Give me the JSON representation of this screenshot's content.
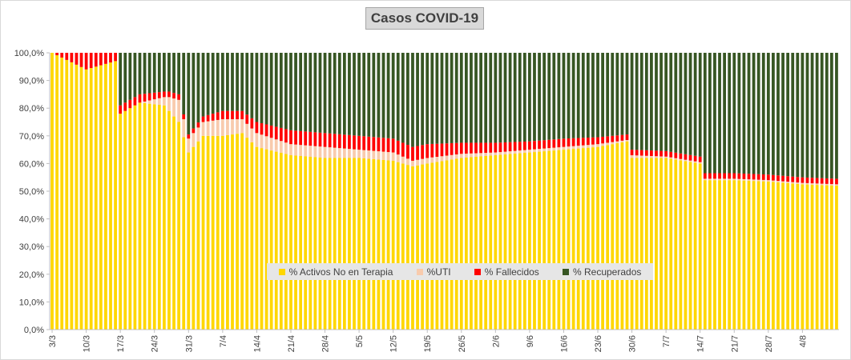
{
  "chart_data": {
    "type": "bar",
    "stacked": true,
    "title": "Casos  COVID-19",
    "xlabel": "",
    "ylabel": "",
    "ylim": [
      0,
      100
    ],
    "y_ticks": [
      "0,0%",
      "10,0%",
      "20,0%",
      "30,0%",
      "40,0%",
      "50,0%",
      "60,0%",
      "70,0%",
      "80,0%",
      "90,0%",
      "100,0%"
    ],
    "x_start": "3/3",
    "x_end": "11/8",
    "x_tick_labels": [
      "3/3",
      "10/3",
      "17/3",
      "24/3",
      "31/3",
      "7/4",
      "14/4",
      "21/4",
      "28/4",
      "5/5",
      "12/5",
      "19/5",
      "26/5",
      "2/6",
      "9/6",
      "16/6",
      "23/6",
      "30/6",
      "7/7",
      "14/7",
      "21/7",
      "28/7",
      "4/8"
    ],
    "legend_position": "bottom-center",
    "grid": false,
    "colors": {
      "activos": "#ffd700",
      "uti": "#f8cbad",
      "fallecidos": "#ff0000",
      "recuperados": "#375623"
    },
    "series": [
      {
        "key": "activos",
        "name": "% Activos No en Terapia"
      },
      {
        "key": "uti",
        "name": "%UTI"
      },
      {
        "key": "fallecidos",
        "name": "% Fallecidos"
      },
      {
        "key": "recuperados",
        "name": "% Recuperados"
      }
    ],
    "keyframes": [
      {
        "d": 0,
        "a": 100,
        "u": 0,
        "f": 0,
        "r": 0
      },
      {
        "d": 7,
        "a": 94,
        "u": 0,
        "f": 6,
        "r": 0
      },
      {
        "d": 13,
        "a": 97,
        "u": 0,
        "f": 3,
        "r": 0
      },
      {
        "d": 14,
        "a": 78,
        "u": 0,
        "f": 3,
        "r": 19
      },
      {
        "d": 18,
        "a": 82,
        "u": 0,
        "f": 3,
        "r": 15
      },
      {
        "d": 23,
        "a": 81,
        "u": 3,
        "f": 2,
        "r": 14
      },
      {
        "d": 24,
        "a": 79,
        "u": 5,
        "f": 2,
        "r": 14
      },
      {
        "d": 26,
        "a": 75,
        "u": 8,
        "f": 2,
        "r": 15
      },
      {
        "d": 28,
        "a": 64,
        "u": 5,
        "f": 1.5,
        "r": 29.5
      },
      {
        "d": 31,
        "a": 70,
        "u": 5,
        "f": 2,
        "r": 23
      },
      {
        "d": 35,
        "a": 70,
        "u": 6,
        "f": 3,
        "r": 21
      },
      {
        "d": 39,
        "a": 71,
        "u": 5,
        "f": 3,
        "r": 21
      },
      {
        "d": 42,
        "a": 66,
        "u": 5,
        "f": 4,
        "r": 25
      },
      {
        "d": 49,
        "a": 63,
        "u": 4,
        "f": 5,
        "r": 28
      },
      {
        "d": 56,
        "a": 62,
        "u": 4,
        "f": 5,
        "r": 29
      },
      {
        "d": 63,
        "a": 62,
        "u": 3,
        "f": 5,
        "r": 30
      },
      {
        "d": 70,
        "a": 61,
        "u": 3,
        "f": 5,
        "r": 31
      },
      {
        "d": 74,
        "a": 59,
        "u": 2,
        "f": 5,
        "r": 34
      },
      {
        "d": 77,
        "a": 60,
        "u": 2,
        "f": 5,
        "r": 33
      },
      {
        "d": 84,
        "a": 62,
        "u": 1.5,
        "f": 4,
        "r": 32.5
      },
      {
        "d": 91,
        "a": 63,
        "u": 1,
        "f": 3.5,
        "r": 32.5
      },
      {
        "d": 98,
        "a": 64,
        "u": 1,
        "f": 3,
        "r": 32
      },
      {
        "d": 105,
        "a": 65,
        "u": 1,
        "f": 3,
        "r": 31
      },
      {
        "d": 112,
        "a": 66,
        "u": 1,
        "f": 2.5,
        "r": 30.5
      },
      {
        "d": 118,
        "a": 68,
        "u": 0.5,
        "f": 2,
        "r": 29.5
      },
      {
        "d": 119,
        "a": 62,
        "u": 1,
        "f": 2,
        "r": 35
      },
      {
        "d": 126,
        "a": 62,
        "u": 0.5,
        "f": 2,
        "r": 35.5
      },
      {
        "d": 133,
        "a": 60,
        "u": 0.5,
        "f": 2,
        "r": 37.5
      },
      {
        "d": 134,
        "a": 54,
        "u": 0.5,
        "f": 2,
        "r": 43.5
      },
      {
        "d": 140,
        "a": 54,
        "u": 0.5,
        "f": 2,
        "r": 43.5
      },
      {
        "d": 147,
        "a": 53.5,
        "u": 0.5,
        "f": 2,
        "r": 44
      },
      {
        "d": 154,
        "a": 52.5,
        "u": 0.5,
        "f": 2,
        "r": 45
      },
      {
        "d": 161,
        "a": 52,
        "u": 0.5,
        "f": 2,
        "r": 45.5
      }
    ]
  }
}
